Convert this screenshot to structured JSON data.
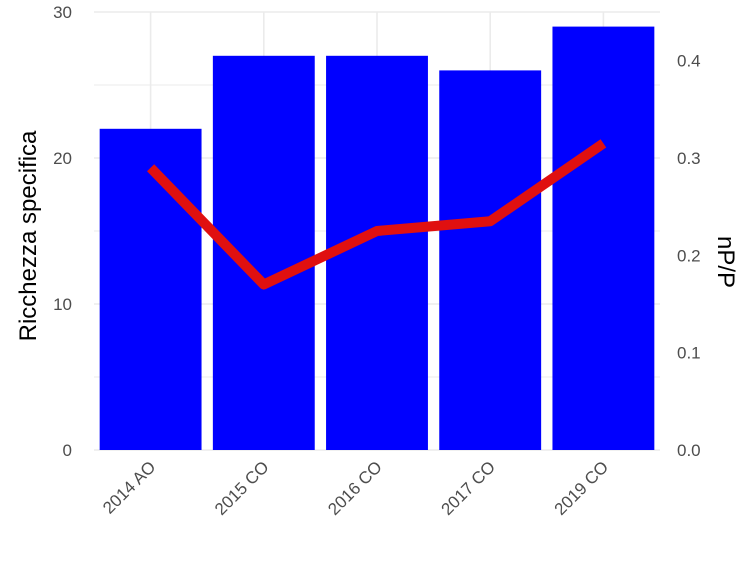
{
  "chart_data": {
    "type": "bar",
    "categories": [
      "2014 AO",
      "2015 CO",
      "2016 CO",
      "2017 CO",
      "2019 CO"
    ],
    "values": [
      22,
      27,
      27,
      26,
      29
    ],
    "ylabel": "Ricchezza specifica",
    "ylim": [
      0,
      30
    ],
    "yticks": [
      0,
      10,
      20,
      30
    ],
    "y2label": "nP/P",
    "y2lim": [
      0,
      0.45
    ],
    "y2ticks": [
      "0.0",
      "0.1",
      "0.2",
      "0.3",
      "0.4"
    ],
    "line": {
      "values": [
        0.29,
        0.17,
        0.225,
        0.235,
        0.315
      ]
    },
    "bar_color": "#0000ff",
    "line_color": "#e01010",
    "grid_color": "#ebebeb",
    "grid": true
  }
}
